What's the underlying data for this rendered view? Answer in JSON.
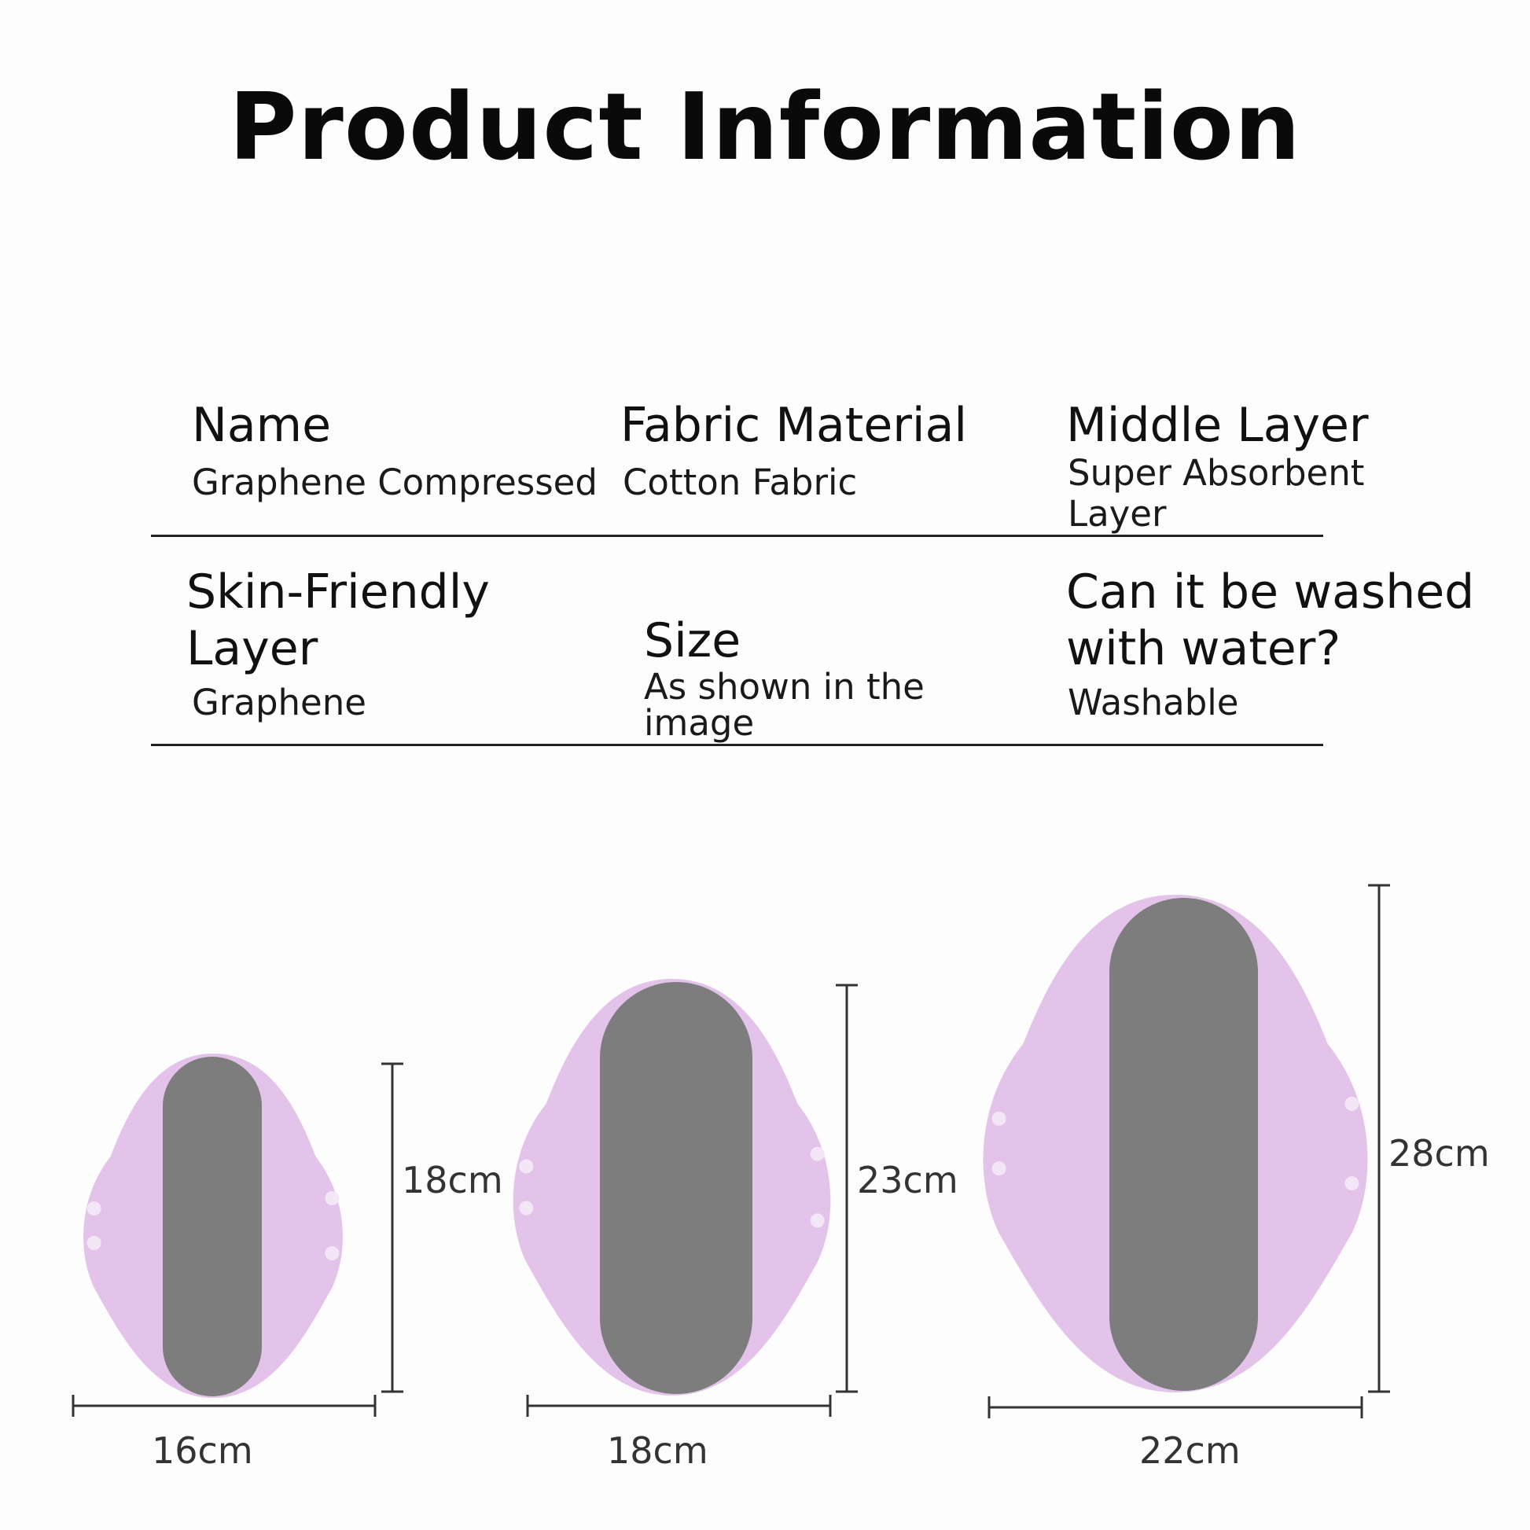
{
  "title": "Product Information",
  "specs": [
    {
      "label": "Name",
      "value": "Graphene Compressed"
    },
    {
      "label": "Fabric Material",
      "value": "Cotton Fabric"
    },
    {
      "label": "Middle Layer",
      "value_lines": [
        "Super Absorbent",
        "Layer"
      ]
    },
    {
      "label_lines": [
        "Skin-Friendly",
        "Layer"
      ],
      "value": "Graphene"
    },
    {
      "label": "Size",
      "value_lines": [
        "As shown in the",
        "image"
      ]
    },
    {
      "label_lines": [
        "Can it be washed",
        "with water?"
      ],
      "value": "Washable"
    }
  ],
  "sizes": [
    {
      "width": "16cm",
      "length": "18cm"
    },
    {
      "width": "18cm",
      "length": "23cm"
    },
    {
      "width": "22cm",
      "length": "28cm"
    }
  ],
  "colors": {
    "pad": "#e3c3ea",
    "core": "#7d7d7d",
    "dimension_line": "#333333"
  }
}
